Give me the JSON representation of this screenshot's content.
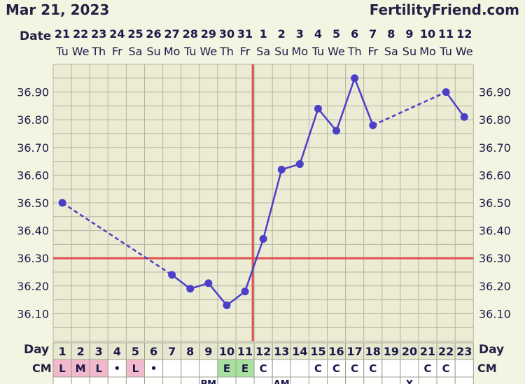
{
  "header": {
    "date": "Mar 21, 2023",
    "site": "FertilityFriend.com"
  },
  "row_labels": {
    "date": "Date",
    "day": "Day",
    "cm": "CM"
  },
  "columns": {
    "dates": [
      "21",
      "22",
      "23",
      "24",
      "25",
      "26",
      "27",
      "28",
      "29",
      "30",
      "31",
      "1",
      "2",
      "3",
      "4",
      "5",
      "6",
      "7",
      "8",
      "9",
      "10",
      "11",
      "12"
    ],
    "weekdays": [
      "Tu",
      "We",
      "Th",
      "Fr",
      "Sa",
      "Su",
      "Mo",
      "Tu",
      "We",
      "Th",
      "Fr",
      "Sa",
      "Su",
      "Mo",
      "Tu",
      "We",
      "Th",
      "Fr",
      "Sa",
      "Su",
      "Mo",
      "Tu",
      "We"
    ],
    "cycle_days": [
      "1",
      "2",
      "3",
      "4",
      "5",
      "6",
      "7",
      "8",
      "9",
      "10",
      "11",
      "12",
      "13",
      "14",
      "15",
      "16",
      "17",
      "18",
      "19",
      "20",
      "21",
      "22",
      "23"
    ],
    "cm": [
      "L",
      "M",
      "L",
      "•",
      "L",
      "•",
      "",
      "",
      "",
      "E",
      "E",
      "C",
      "",
      "",
      "C",
      "C",
      "C",
      "C",
      "",
      "",
      "C",
      "C",
      ""
    ],
    "cm_colors": [
      "#f2b8cc",
      "#f2b8cc",
      "#f2b8cc",
      "",
      "#f2b8cc",
      "",
      "",
      "",
      "",
      "#a8e0a0",
      "#a8e0a0",
      "",
      "",
      "",
      "",
      "",
      "",
      "",
      "",
      "",
      "",
      "",
      ""
    ],
    "partial_row": [
      "",
      "",
      "",
      "",
      "",
      "",
      "",
      "",
      "PM",
      "",
      "",
      "",
      "AM",
      "",
      "",
      "",
      "",
      "",
      "",
      "Y",
      "",
      "",
      ""
    ]
  },
  "chart_data": {
    "type": "line",
    "y_ticks": [
      "36.10",
      "36.20",
      "36.30",
      "36.40",
      "36.50",
      "36.60",
      "36.70",
      "36.80",
      "36.90"
    ],
    "ylim": [
      36.0,
      37.0
    ],
    "temps": [
      36.5,
      null,
      null,
      null,
      null,
      null,
      36.24,
      36.19,
      36.21,
      36.13,
      36.18,
      36.37,
      36.62,
      36.64,
      36.84,
      36.76,
      36.95,
      36.78,
      null,
      null,
      null,
      36.9,
      36.81
    ],
    "coverline": 36.3,
    "ovulation_day": 11,
    "colors": {
      "line": "#4b3fc8",
      "reference": "#e05050",
      "grid": "#b4b4a0",
      "plot_bg": "#ececd4"
    }
  }
}
